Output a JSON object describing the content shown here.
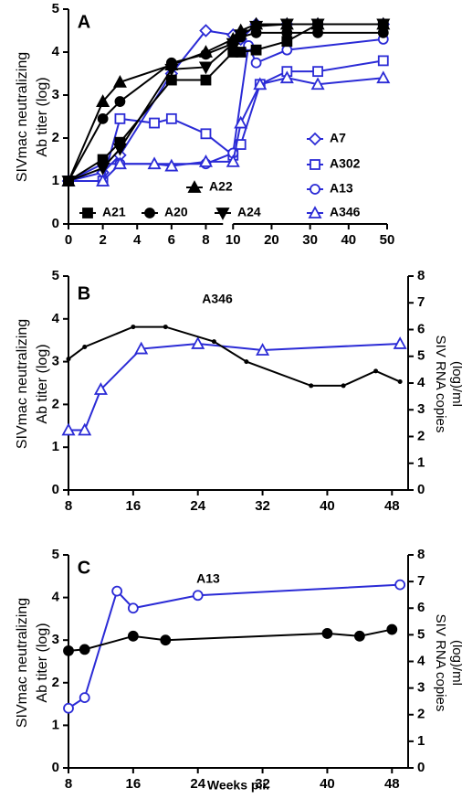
{
  "chart_data": [
    {
      "type": "line",
      "panel": "A",
      "ylabel": [
        "SIVmac neutralizing",
        "Ab titer (log)"
      ],
      "ylim": [
        0,
        5
      ],
      "yticks": [
        0,
        1,
        2,
        3,
        4,
        5
      ],
      "xlim": [
        0,
        50
      ],
      "xticks": [
        0,
        2,
        4,
        6,
        8,
        10,
        20,
        30,
        40,
        50
      ],
      "x_break": [
        9,
        10
      ],
      "series": [
        {
          "name": "A7",
          "color": "#2b2bd6",
          "marker": "diamond",
          "filled": false,
          "x": [
            0,
            2,
            3,
            6,
            8,
            10,
            12,
            16,
            24,
            32,
            49
          ],
          "values": [
            1,
            1.2,
            1.6,
            3.5,
            4.5,
            4.4,
            4.3,
            4.65,
            4.65,
            4.65,
            4.65
          ]
        },
        {
          "name": "A302",
          "color": "#2b2bd6",
          "marker": "square",
          "filled": false,
          "x": [
            0,
            2,
            3,
            5,
            6,
            8,
            10,
            12,
            17,
            24,
            32,
            49
          ],
          "values": [
            1,
            1,
            2.45,
            2.35,
            2.45,
            2.1,
            1.6,
            1.85,
            3.25,
            3.55,
            3.55,
            3.8
          ]
        },
        {
          "name": "A13",
          "color": "#2b2bd6",
          "marker": "circle",
          "filled": false,
          "x": [
            0,
            2,
            3,
            8,
            10,
            14,
            16,
            24,
            49
          ],
          "values": [
            1,
            1.4,
            1.4,
            1.4,
            1.65,
            4.15,
            3.75,
            4.05,
            4.3
          ]
        },
        {
          "name": "A346",
          "color": "#2b2bd6",
          "marker": "triangle",
          "filled": false,
          "x": [
            0,
            2,
            3,
            5,
            6,
            8,
            10,
            12,
            17,
            24,
            32,
            49
          ],
          "values": [
            1,
            1,
            1.4,
            1.4,
            1.35,
            1.45,
            1.45,
            2.35,
            3.25,
            3.4,
            3.25,
            3.4
          ]
        },
        {
          "name": "A22",
          "color": "#000000",
          "marker": "triangle",
          "filled": true,
          "x": [
            0,
            2,
            3,
            6,
            8,
            10,
            12,
            16,
            24,
            32,
            49
          ],
          "values": [
            1,
            2.85,
            3.3,
            3.7,
            4.0,
            4.3,
            4.5,
            4.65,
            4.65,
            4.65,
            4.65
          ]
        },
        {
          "name": "A21",
          "color": "#000000",
          "marker": "square",
          "filled": true,
          "x": [
            0,
            2,
            3,
            6,
            8,
            10,
            12,
            16,
            24,
            32,
            49
          ],
          "values": [
            1,
            1.5,
            1.9,
            3.35,
            3.35,
            4.0,
            4.0,
            4.05,
            4.25,
            4.65,
            4.65
          ]
        },
        {
          "name": "A20",
          "color": "#000000",
          "marker": "circle",
          "filled": true,
          "x": [
            0,
            2,
            3,
            6,
            8,
            10,
            12,
            16,
            24,
            32,
            49
          ],
          "values": [
            1,
            2.45,
            2.85,
            3.75,
            3.95,
            4.2,
            4.35,
            4.45,
            4.45,
            4.45,
            4.45
          ]
        },
        {
          "name": "A24",
          "color": "#000000",
          "marker": "triangle-down",
          "filled": true,
          "x": [
            0,
            2,
            3,
            6,
            8,
            10,
            12,
            16,
            24,
            32,
            49
          ],
          "values": [
            1,
            1.3,
            1.75,
            3.6,
            3.65,
            4.2,
            4.4,
            4.6,
            4.65,
            4.65,
            4.65
          ]
        }
      ]
    },
    {
      "type": "line",
      "panel": "B",
      "title": "A346",
      "ylabel": [
        "SIVmac neutralizing",
        "Ab titer (log)"
      ],
      "y2label": [
        "SIV RNA copies",
        "(log)/ml"
      ],
      "ylim": [
        0,
        5
      ],
      "yticks": [
        0,
        1,
        2,
        3,
        4,
        5
      ],
      "y2lim": [
        0,
        8
      ],
      "y2ticks": [
        0,
        1,
        2,
        3,
        4,
        5,
        6,
        7,
        8
      ],
      "xlim": [
        8,
        50
      ],
      "xticks": [
        8,
        16,
        24,
        32,
        40,
        48
      ],
      "series": [
        {
          "color": "#2b2bd6",
          "marker": "triangle",
          "filled": false,
          "x": [
            8,
            10,
            12,
            17,
            24,
            32,
            49
          ],
          "values": [
            1.4,
            1.4,
            2.35,
            3.3,
            3.42,
            3.27,
            3.42
          ]
        },
        {
          "color": "#000000",
          "marker": "none",
          "filled": true,
          "axis": "y2",
          "x": [
            8,
            10,
            16,
            20,
            26,
            30,
            38,
            42,
            46,
            49
          ],
          "values": [
            4.9,
            5.35,
            6.1,
            6.1,
            5.55,
            4.8,
            3.9,
            3.9,
            4.45,
            4.05
          ]
        }
      ]
    },
    {
      "type": "line",
      "panel": "C",
      "title": "A13",
      "xlabel": "Weeks p.i.",
      "ylabel": [
        "SIVmac neutralizing",
        "Ab titer (log)"
      ],
      "y2label": [
        "SIV RNA copies",
        "(log)/ml"
      ],
      "ylim": [
        0,
        5
      ],
      "yticks": [
        0,
        1,
        2,
        3,
        4,
        5
      ],
      "y2lim": [
        0,
        8
      ],
      "y2ticks": [
        0,
        1,
        2,
        3,
        4,
        5,
        6,
        7,
        8
      ],
      "xlim": [
        8,
        50
      ],
      "xticks": [
        8,
        16,
        24,
        32,
        40,
        48
      ],
      "series": [
        {
          "color": "#2b2bd6",
          "marker": "circle",
          "filled": false,
          "x": [
            8,
            10,
            14,
            16,
            24,
            49
          ],
          "values": [
            1.4,
            1.65,
            4.15,
            3.75,
            4.05,
            4.3
          ]
        },
        {
          "color": "#000000",
          "marker": "circle",
          "filled": true,
          "axis": "y2",
          "x": [
            8,
            10,
            16,
            20,
            40,
            44,
            48
          ],
          "values": [
            4.4,
            4.45,
            4.95,
            4.8,
            5.05,
            4.95,
            5.2
          ]
        }
      ]
    }
  ]
}
